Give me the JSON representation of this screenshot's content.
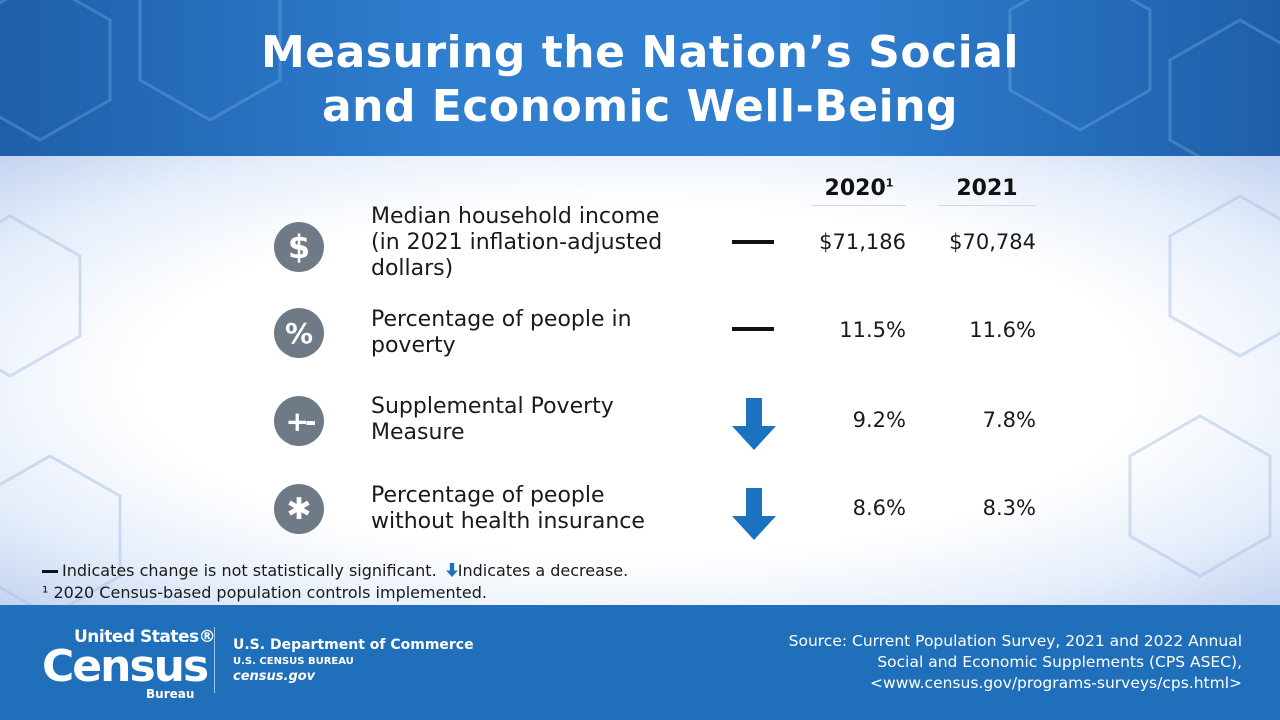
{
  "header": {
    "title_line1": "Measuring the Nation’s Social",
    "title_line2": "and Economic Well-Being"
  },
  "table": {
    "col_2020": "2020",
    "col_2020_note": "1",
    "col_2021": "2021",
    "rows": [
      {
        "icon": "dollar-icon",
        "icon_glyph": "$",
        "label_lines": [
          "Median household income",
          "(in 2021 inflation-adjusted",
          "dollars)"
        ],
        "change": "not-significant",
        "v2020": "$71,186",
        "v2021": "$70,784"
      },
      {
        "icon": "percent-icon",
        "icon_glyph": "%",
        "label_lines": [
          "Percentage of people in",
          "poverty"
        ],
        "change": "not-significant",
        "v2020": "11.5%",
        "v2021": "11.6%"
      },
      {
        "icon": "plus-minus-icon",
        "icon_glyph": "+-",
        "label_lines": [
          "Supplemental Poverty",
          "Measure"
        ],
        "change": "decrease",
        "v2020": "9.2%",
        "v2021": "7.8%"
      },
      {
        "icon": "medical-star-icon",
        "icon_glyph": "✱",
        "label_lines": [
          "Percentage of people",
          "without health insurance"
        ],
        "change": "decrease",
        "v2020": "8.6%",
        "v2021": "8.3%"
      }
    ]
  },
  "notes": {
    "legend_dash": "Indicates change is not statistically significant.",
    "legend_arrow": "Indicates a decrease.",
    "footnote": "¹ 2020 Census-based population controls implemented."
  },
  "footer": {
    "logo_line1": "United States®",
    "logo_main": "Census",
    "logo_sub": "Bureau",
    "dept": "U.S. Department of Commerce",
    "bureau": "U.S. CENSUS BUREAU",
    "site": "census.gov",
    "source_line1": "Source: Current Population Survey, 2021 and 2022 Annual",
    "source_line2": "Social and Economic Supplements (CPS ASEC),",
    "source_line3": "<www.census.gov/programs-surveys/cps.html>"
  },
  "colors": {
    "header_blue": "#2f7ed0",
    "footer_blue": "#1f6fba",
    "icon_gray": "#6e7a86",
    "arrow_blue": "#1b72c0"
  }
}
